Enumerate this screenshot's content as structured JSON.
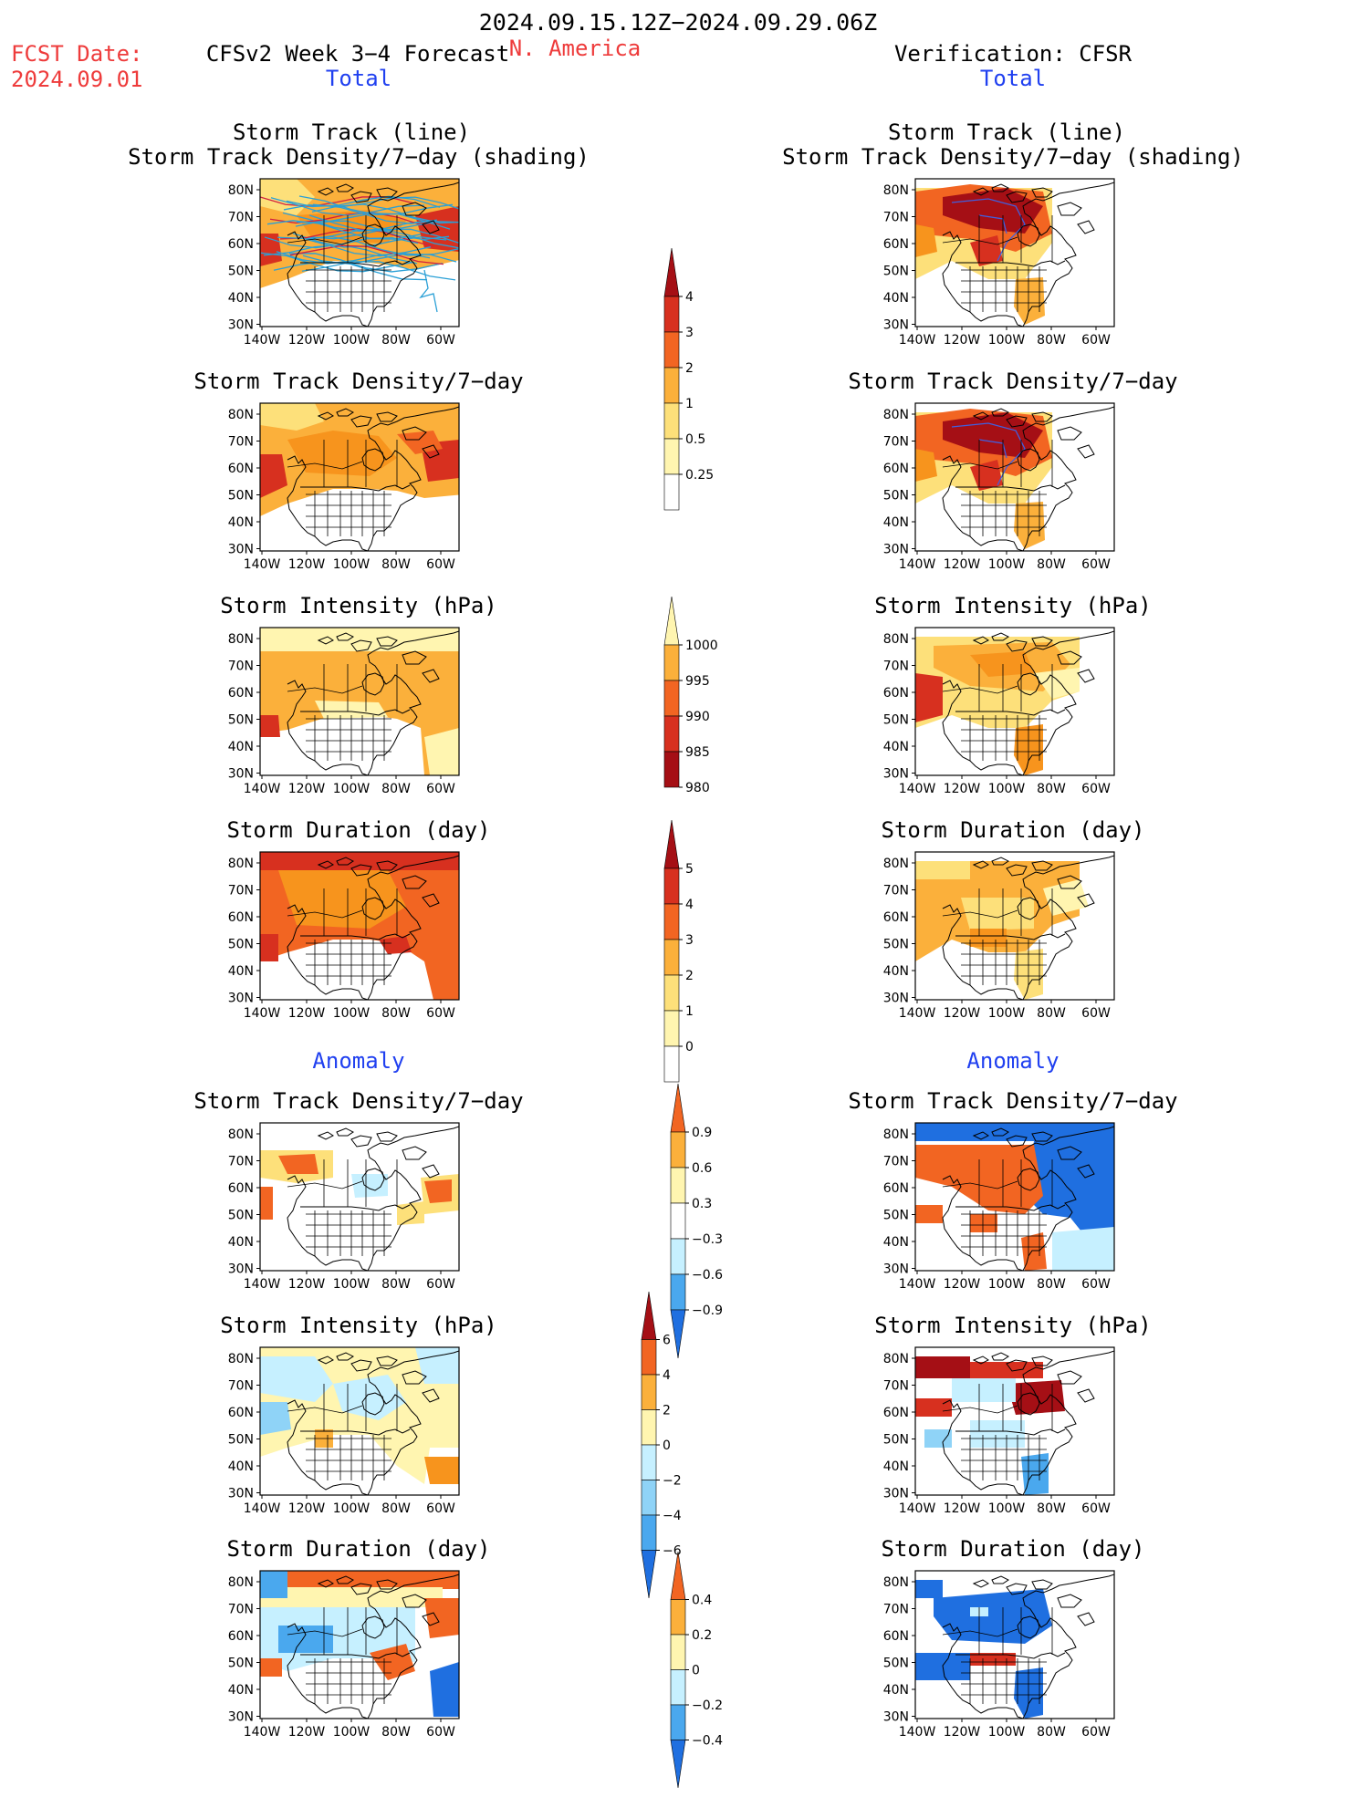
{
  "header": {
    "period": "2024.09.15.12Z−2024.09.29.06Z",
    "region": "N. America",
    "fcst_date_label": "FCST Date:",
    "fcst_date": "2024.09.01",
    "model": "CFSv2 Week 3−4 Forecast",
    "verification": "Verification: CFSR",
    "left_section": "Total",
    "right_section": "Total"
  },
  "sections": {
    "anomaly_left": "Anomaly",
    "anomaly_right": "Anomaly"
  },
  "panel_titles": {
    "track_line": "Storm Track (line)",
    "track_shading": "Storm Track Density/7−day (shading)",
    "density": "Storm Track Density/7−day",
    "intensity": "Storm Intensity (hPa)",
    "duration": "Storm Duration (day)"
  },
  "axes": {
    "lat_ticks": [
      "80N",
      "70N",
      "60N",
      "50N",
      "40N",
      "30N"
    ],
    "lon_ticks": [
      "140W",
      "120W",
      "100W",
      "80W",
      "60W"
    ]
  },
  "colorbars": {
    "density": [
      "4",
      "3",
      "2",
      "1",
      "0.5",
      "0.25"
    ],
    "intensity": [
      "1000",
      "995",
      "990",
      "985",
      "980"
    ],
    "duration": [
      "5",
      "4",
      "3",
      "2",
      "1",
      "0"
    ],
    "density_anom": [
      "0.9",
      "0.6",
      "0.3",
      "−0.3",
      "−0.6",
      "−0.9"
    ],
    "intensity_anom": [
      "6",
      "4",
      "2",
      "0",
      "−2",
      "−4",
      "−6"
    ],
    "duration_anom": [
      "0.4",
      "0.2",
      "0",
      "−0.2",
      "−0.4"
    ]
  },
  "colors": {
    "header_red": "#ee3b3b",
    "header_blue": "#2040f0",
    "warm": [
      "#fff5b0",
      "#fde07a",
      "#fbb03b",
      "#f7941d",
      "#f26522",
      "#d7301f",
      "#a50f15"
    ],
    "cool": [
      "#c6f0ff",
      "#8fd3f7",
      "#4aa8ee",
      "#1f6fe0",
      "#0a3fc2"
    ],
    "track_line": "#2ba0d6"
  }
}
